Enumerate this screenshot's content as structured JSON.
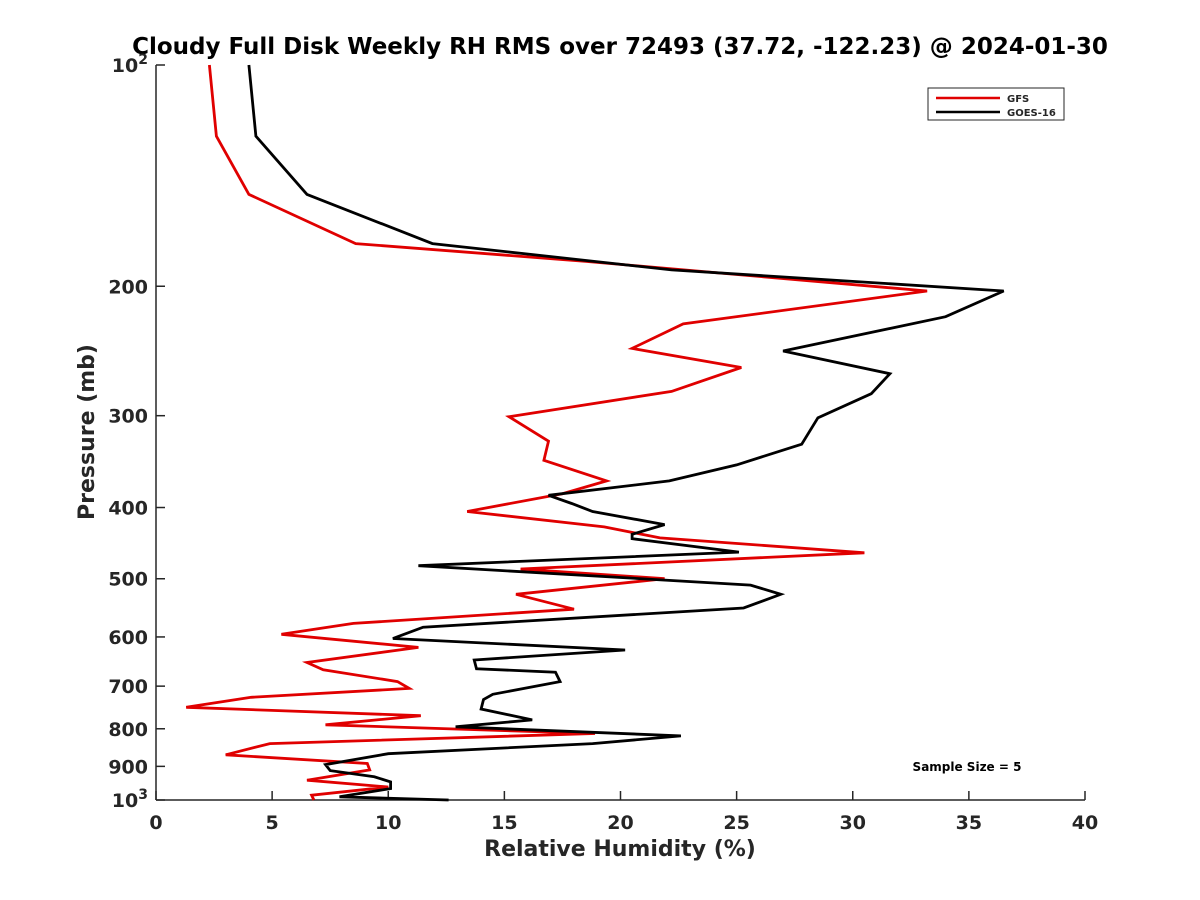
{
  "chart_data": {
    "type": "line",
    "title": "Cloudy Full Disk Weekly RH RMS over 72493 (37.72, -122.23) @ 2024-01-30",
    "xlabel": "Relative Humidity (%)",
    "ylabel": "Pressure (mb)",
    "xlim": [
      0,
      40
    ],
    "ylim": [
      100,
      1000
    ],
    "yscale": "log",
    "y_reversed": true,
    "x_ticks": [
      "0",
      "5",
      "10",
      "15",
      "20",
      "25",
      "30",
      "35",
      "40"
    ],
    "y_ticks": [
      {
        "value": 100,
        "label": "10",
        "sup": "2"
      },
      {
        "value": 200,
        "label": "200",
        "sup": ""
      },
      {
        "value": 300,
        "label": "300",
        "sup": ""
      },
      {
        "value": 400,
        "label": "400",
        "sup": ""
      },
      {
        "value": 500,
        "label": "500",
        "sup": ""
      },
      {
        "value": 600,
        "label": "600",
        "sup": ""
      },
      {
        "value": 700,
        "label": "700",
        "sup": ""
      },
      {
        "value": 800,
        "label": "800",
        "sup": ""
      },
      {
        "value": 900,
        "label": "900",
        "sup": ""
      },
      {
        "value": 1000,
        "label": "10",
        "sup": "3"
      }
    ],
    "legend_position": "top-right",
    "annotation": "Sample Size = 5",
    "series": [
      {
        "name": "GFS",
        "color": "#e00000",
        "points": [
          [
            2.3,
            100
          ],
          [
            2.6,
            125
          ],
          [
            4.0,
            150
          ],
          [
            8.6,
            175
          ],
          [
            18.5,
            185
          ],
          [
            33.2,
            203
          ],
          [
            22.7,
            225
          ],
          [
            20.5,
            243
          ],
          [
            25.2,
            258
          ],
          [
            22.2,
            278
          ],
          [
            15.2,
            301
          ],
          [
            16.9,
            325
          ],
          [
            16.7,
            345
          ],
          [
            19.4,
            368
          ],
          [
            17.5,
            383
          ],
          [
            13.4,
            405
          ],
          [
            19.3,
            425
          ],
          [
            21.7,
            440
          ],
          [
            30.5,
            461
          ],
          [
            15.7,
            485
          ],
          [
            21.9,
            500
          ],
          [
            15.5,
            525
          ],
          [
            18.0,
            550
          ],
          [
            8.5,
            575
          ],
          [
            5.4,
            595
          ],
          [
            11.3,
            620
          ],
          [
            6.5,
            650
          ],
          [
            7.2,
            665
          ],
          [
            10.4,
            690
          ],
          [
            10.9,
            705
          ],
          [
            4.1,
            725
          ],
          [
            1.3,
            748
          ],
          [
            11.4,
            768
          ],
          [
            7.3,
            790
          ],
          [
            18.9,
            812
          ],
          [
            4.9,
            838
          ],
          [
            3.0,
            868
          ],
          [
            9.1,
            892
          ],
          [
            9.2,
            910
          ],
          [
            6.5,
            940
          ],
          [
            10.0,
            960
          ],
          [
            6.7,
            985
          ],
          [
            6.8,
            1000
          ]
        ]
      },
      {
        "name": "GOES-16",
        "color": "#000000",
        "points": [
          [
            4.0,
            100
          ],
          [
            4.3,
            125
          ],
          [
            6.5,
            150
          ],
          [
            11.9,
            175
          ],
          [
            22.2,
            190
          ],
          [
            36.5,
            203
          ],
          [
            34.0,
            220
          ],
          [
            27.0,
            245
          ],
          [
            31.6,
            263
          ],
          [
            30.8,
            280
          ],
          [
            28.5,
            302
          ],
          [
            27.8,
            328
          ],
          [
            25.0,
            350
          ],
          [
            22.1,
            368
          ],
          [
            16.9,
            385
          ],
          [
            17.9,
            395
          ],
          [
            18.8,
            405
          ],
          [
            21.9,
            422
          ],
          [
            20.5,
            435
          ],
          [
            20.5,
            441
          ],
          [
            25.1,
            460
          ],
          [
            11.3,
            480
          ],
          [
            25.6,
            510
          ],
          [
            26.9,
            525
          ],
          [
            25.3,
            548
          ],
          [
            11.5,
            582
          ],
          [
            10.2,
            603
          ],
          [
            20.2,
            625
          ],
          [
            13.7,
            645
          ],
          [
            13.8,
            663
          ],
          [
            17.2,
            670
          ],
          [
            17.4,
            690
          ],
          [
            14.5,
            718
          ],
          [
            14.1,
            730
          ],
          [
            14.0,
            752
          ],
          [
            16.2,
            778
          ],
          [
            12.9,
            795
          ],
          [
            22.6,
            818
          ],
          [
            18.8,
            838
          ],
          [
            10.0,
            865
          ],
          [
            7.3,
            895
          ],
          [
            7.5,
            912
          ],
          [
            9.4,
            930
          ],
          [
            10.1,
            945
          ],
          [
            10.1,
            965
          ],
          [
            7.9,
            990
          ],
          [
            12.6,
            1000
          ]
        ]
      }
    ]
  }
}
